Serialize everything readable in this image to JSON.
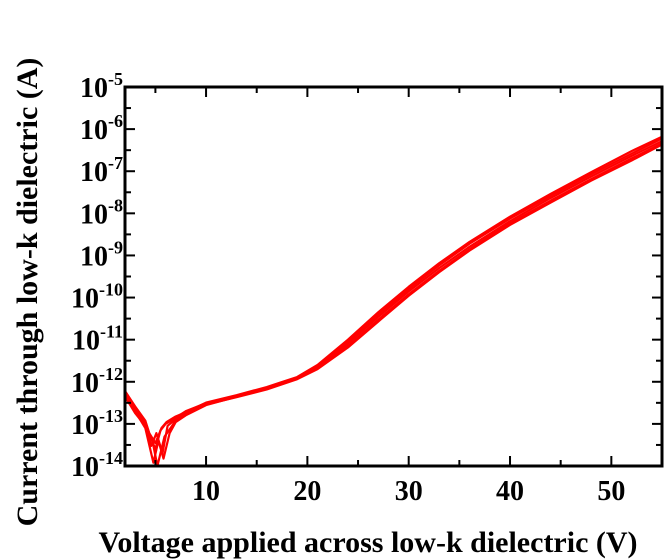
{
  "chart_data": {
    "type": "line",
    "title": "",
    "xlabel": "Voltage applied across low-k dielectric (V)",
    "ylabel": "Current through low-k dielectric (A)",
    "xlim": [
      2,
      55
    ],
    "ylim": [
      1e-14,
      1e-05
    ],
    "y_scale": "log",
    "grid": false,
    "legend": "none",
    "line_color": "#ff0000",
    "x_ticks": [
      10,
      20,
      30,
      40,
      50
    ],
    "x_tick_labels": [
      "10",
      "20",
      "30",
      "40",
      "50"
    ],
    "y_ticks": [
      1e-14,
      1e-13,
      1e-12,
      1e-11,
      1e-10,
      1e-09,
      1e-08,
      1e-07,
      1e-06,
      1e-05
    ],
    "y_tick_labels": [
      {
        "base": "10",
        "exp": "-14"
      },
      {
        "base": "10",
        "exp": "-13"
      },
      {
        "base": "10",
        "exp": "-12"
      },
      {
        "base": "10",
        "exp": "-11"
      },
      {
        "base": "10",
        "exp": "-10"
      },
      {
        "base": "10",
        "exp": "-9"
      },
      {
        "base": "10",
        "exp": "-8"
      },
      {
        "base": "10",
        "exp": "-7"
      },
      {
        "base": "10",
        "exp": "-6"
      },
      {
        "base": "10",
        "exp": "-5"
      }
    ],
    "series": [
      {
        "x": [
          2,
          3,
          4,
          4.6,
          5.1,
          5.7,
          6.2,
          7,
          8,
          10,
          13,
          16,
          19,
          21,
          24,
          27,
          30,
          33,
          36,
          40,
          44,
          48,
          52,
          55
        ],
        "y": [
          6e-13,
          2.5e-13,
          1e-13,
          3e-14,
          6e-14,
          2e-14,
          9e-14,
          1.3e-13,
          1.8e-13,
          3e-13,
          4.5e-13,
          7e-13,
          1.2e-12,
          2.2e-12,
          8e-12,
          3.5e-11,
          1.4e-10,
          5e-10,
          1.6e-09,
          6.5e-09,
          2.3e-08,
          7.5e-08,
          2.3e-07,
          5.2e-07
        ]
      },
      {
        "x": [
          2,
          3,
          4,
          4.8,
          5.3,
          5.8,
          6.4,
          7,
          8,
          10,
          13,
          16,
          19,
          21,
          24,
          27,
          30,
          33,
          36,
          40,
          44,
          48,
          52,
          55
        ],
        "y": [
          5e-13,
          2e-13,
          8e-14,
          1.2e-14,
          4e-14,
          1.5e-14,
          6e-14,
          1.1e-13,
          1.6e-13,
          2.8e-13,
          4.4e-13,
          6.8e-13,
          1.2e-12,
          2.1e-12,
          7e-12,
          3e-11,
          1.2e-10,
          4.3e-10,
          1.4e-09,
          5.8e-09,
          2e-08,
          6.5e-08,
          2e-07,
          4.6e-07
        ]
      },
      {
        "x": [
          2,
          3,
          4,
          4.5,
          5,
          5.5,
          6,
          7,
          8,
          10,
          13,
          16,
          19,
          21,
          24,
          27,
          30,
          33,
          36,
          40,
          44,
          48,
          52,
          55
        ],
        "y": [
          5.5e-13,
          2.2e-13,
          1.1e-13,
          5e-14,
          2.5e-14,
          7e-14,
          1e-13,
          1.4e-13,
          2e-13,
          3.1e-13,
          4.6e-13,
          7.2e-13,
          1.25e-12,
          2.4e-12,
          9e-12,
          4e-11,
          1.6e-10,
          5.8e-10,
          1.9e-09,
          7.5e-09,
          2.6e-08,
          8.5e-08,
          2.6e-07,
          6e-07
        ]
      },
      {
        "x": [
          2,
          3,
          4,
          4.7,
          5.2,
          5.9,
          6.5,
          7,
          8,
          10,
          13,
          16,
          19,
          21,
          24,
          27,
          30,
          33,
          36,
          40,
          44,
          48,
          52,
          55
        ],
        "y": [
          4.5e-13,
          1.8e-13,
          9e-14,
          4e-14,
          1e-14,
          5e-14,
          8e-14,
          1.2e-13,
          1.7e-13,
          2.9e-13,
          4.3e-13,
          6.6e-13,
          1.15e-12,
          2e-12,
          6.5e-12,
          2.7e-11,
          1.1e-10,
          4e-10,
          1.3e-09,
          5.3e-09,
          1.8e-08,
          6e-08,
          1.8e-07,
          4.3e-07
        ]
      },
      {
        "x": [
          2,
          3,
          4,
          4.4,
          5,
          5.6,
          6.1,
          7,
          8,
          10,
          13,
          16,
          19,
          21,
          24,
          27,
          30,
          33,
          36,
          40,
          44,
          48,
          52,
          55
        ],
        "y": [
          6e-13,
          2.6e-13,
          1.2e-13,
          6e-14,
          3.5e-14,
          8e-14,
          1.1e-13,
          1.5e-13,
          1.9e-13,
          3.2e-13,
          4.8e-13,
          7.5e-13,
          1.3e-12,
          2.5e-12,
          1e-11,
          4.5e-11,
          1.8e-10,
          6.5e-10,
          2.1e-09,
          8.3e-09,
          2.9e-08,
          9.5e-08,
          3e-07,
          6.6e-07
        ]
      }
    ]
  }
}
